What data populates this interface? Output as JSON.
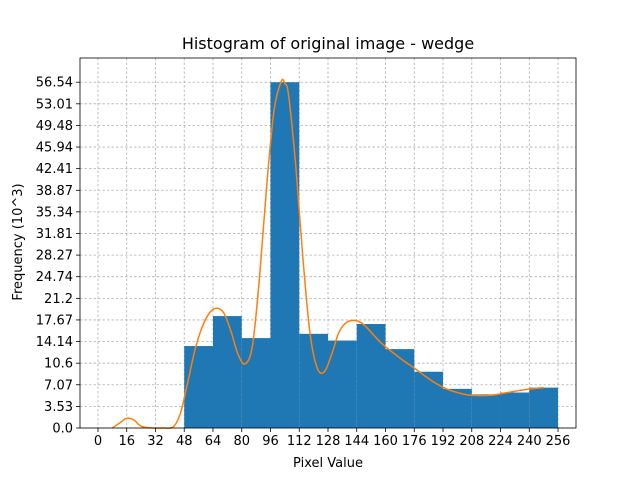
{
  "chart_data": {
    "type": "bar",
    "title": "Histogram of original image - wedge",
    "xlabel": "Pixel Value",
    "ylabel": "Frequency (10^3)",
    "xlim": [
      -10,
      266
    ],
    "ylim": [
      0,
      60.5
    ],
    "grid": true,
    "x_ticks": [
      0,
      16,
      32,
      48,
      64,
      80,
      96,
      112,
      128,
      144,
      160,
      176,
      192,
      208,
      224,
      240,
      256
    ],
    "x_tick_labels": [
      "0",
      "16",
      "32",
      "48",
      "64",
      "80",
      "96",
      "112",
      "128",
      "144",
      "160",
      "176",
      "192",
      "208",
      "224",
      "240",
      "256"
    ],
    "y_ticks": [
      0,
      3.53,
      7.07,
      10.6,
      14.14,
      17.67,
      21.2,
      24.74,
      28.27,
      31.81,
      35.34,
      38.87,
      42.41,
      45.94,
      49.48,
      53.01,
      56.54
    ],
    "y_tick_labels": [
      "0.0",
      "3.53",
      "7.07",
      "10.6",
      "14.14",
      "17.67",
      "21.2",
      "24.74",
      "28.27",
      "31.81",
      "35.34",
      "38.87",
      "42.41",
      "45.94",
      "49.48",
      "53.01",
      "56.54"
    ],
    "bins": [
      {
        "x0": 0,
        "x1": 16,
        "value": 0
      },
      {
        "x0": 16,
        "x1": 32,
        "value": 0
      },
      {
        "x0": 32,
        "x1": 48,
        "value": 0
      },
      {
        "x0": 48,
        "x1": 64,
        "value": 13.4
      },
      {
        "x0": 64,
        "x1": 80,
        "value": 18.3
      },
      {
        "x0": 80,
        "x1": 96,
        "value": 14.7
      },
      {
        "x0": 96,
        "x1": 112,
        "value": 56.54
      },
      {
        "x0": 112,
        "x1": 128,
        "value": 15.4
      },
      {
        "x0": 128,
        "x1": 144,
        "value": 14.3
      },
      {
        "x0": 144,
        "x1": 160,
        "value": 17.0
      },
      {
        "x0": 160,
        "x1": 176,
        "value": 12.9
      },
      {
        "x0": 176,
        "x1": 192,
        "value": 9.2
      },
      {
        "x0": 192,
        "x1": 208,
        "value": 6.4
      },
      {
        "x0": 208,
        "x1": 224,
        "value": 5.5
      },
      {
        "x0": 224,
        "x1": 240,
        "value": 5.8
      },
      {
        "x0": 240,
        "x1": 256,
        "value": 6.6
      }
    ],
    "curve": {
      "x": [
        8,
        12,
        16,
        20,
        24,
        30,
        36,
        42,
        46,
        50,
        54,
        58,
        62,
        66,
        70,
        74,
        78,
        82,
        86,
        90,
        94,
        98,
        102,
        104,
        106,
        110,
        114,
        118,
        122,
        126,
        130,
        134,
        138,
        142,
        146,
        150,
        154,
        158,
        162,
        166,
        170,
        176,
        182,
        188,
        194,
        200,
        206,
        212,
        216,
        220,
        226,
        232,
        238,
        244,
        248
      ],
      "y": [
        0,
        0.8,
        1.6,
        1.3,
        0.3,
        -0.2,
        0,
        0.2,
        2.5,
        7.5,
        12.8,
        16.5,
        18.8,
        19.6,
        18.8,
        15.8,
        12.0,
        10.5,
        13.5,
        25,
        40,
        52,
        56.7,
        56.3,
        54.5,
        43,
        28,
        15.5,
        9.8,
        9.2,
        12.0,
        15.6,
        17.2,
        17.6,
        17.3,
        16.3,
        15.0,
        13.8,
        12.8,
        11.9,
        11.0,
        9.8,
        8.5,
        7.3,
        6.4,
        5.8,
        5.4,
        5.3,
        5.3,
        5.4,
        5.7,
        6.0,
        6.3,
        6.5,
        6.6
      ]
    },
    "colors": {
      "bar": "#1f77b4",
      "curve": "#ff7f0e"
    }
  }
}
